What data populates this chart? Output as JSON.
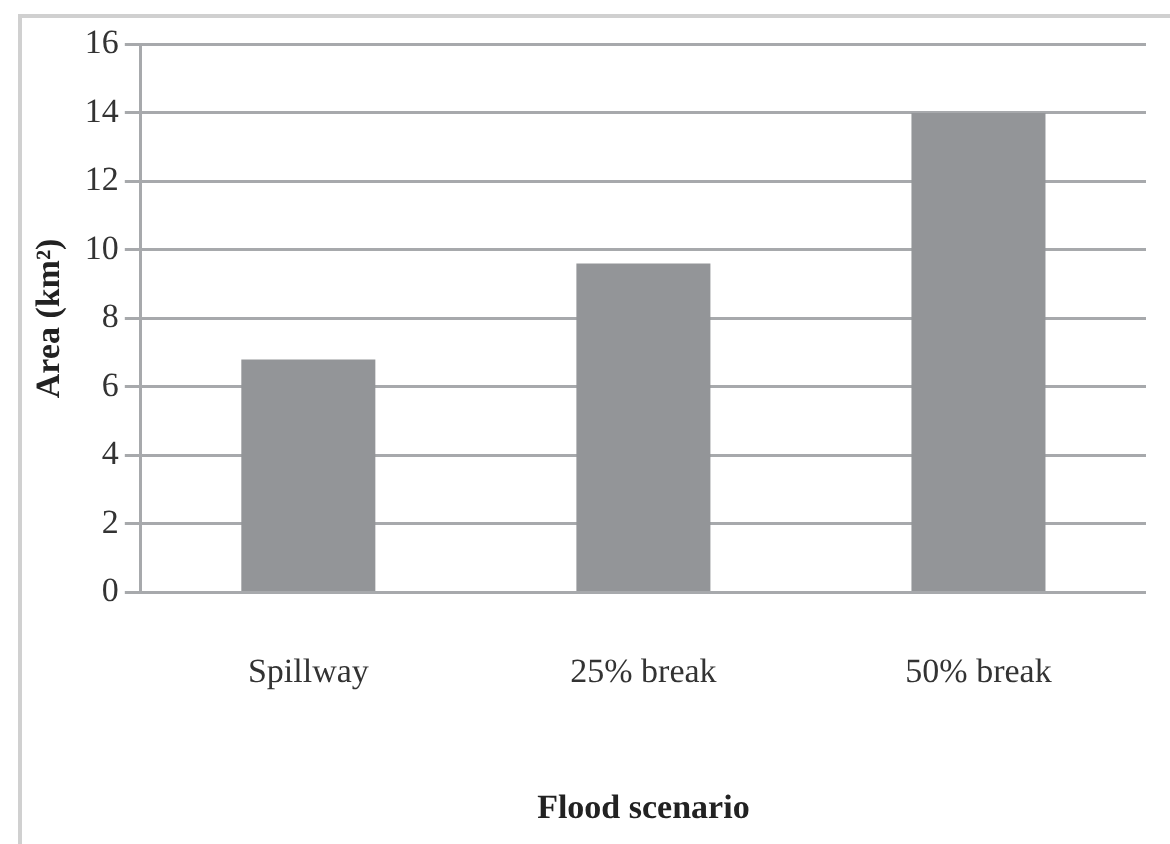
{
  "chart_data": {
    "type": "bar",
    "xlabel": "Flood scenario",
    "ylabel": "Area (km²)",
    "categories": [
      "Spillway",
      "25% break",
      "50% break"
    ],
    "values": [
      6.8,
      9.6,
      14.0
    ],
    "color": "#939598",
    "ylim": [
      0,
      16
    ],
    "yticks": [
      0,
      2,
      4,
      6,
      8,
      10,
      12,
      14,
      16
    ],
    "grid": "y",
    "legend": false
  }
}
